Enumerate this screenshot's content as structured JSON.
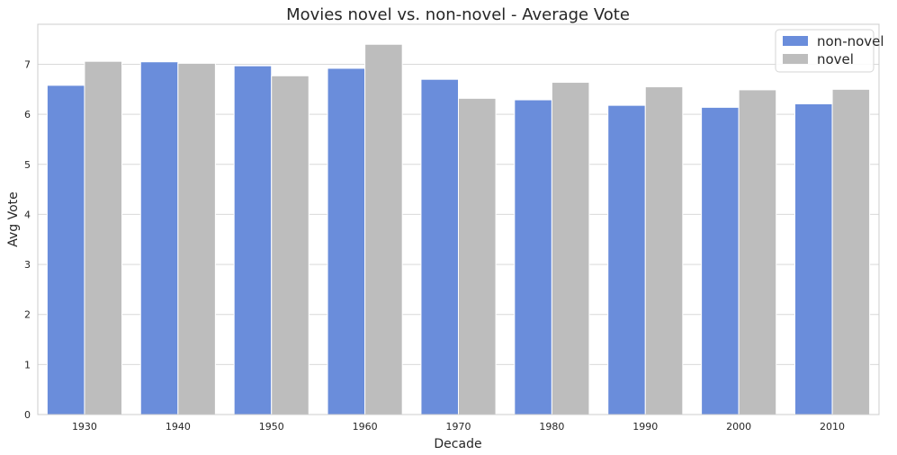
{
  "chart_data": {
    "type": "bar",
    "title": "Movies novel vs. non-novel - Average Vote",
    "xlabel": "Decade",
    "ylabel": "Avg Vote",
    "categories": [
      "1930",
      "1940",
      "1950",
      "1960",
      "1970",
      "1980",
      "1990",
      "2000",
      "2010"
    ],
    "series": [
      {
        "name": "non-novel",
        "color": "#6a8ddb",
        "values": [
          6.58,
          7.05,
          6.97,
          6.92,
          6.7,
          6.29,
          6.18,
          6.14,
          6.21
        ]
      },
      {
        "name": "novel",
        "color": "#bdbdbd",
        "values": [
          7.06,
          7.02,
          6.77,
          7.4,
          6.32,
          6.64,
          6.55,
          6.49,
          6.5
        ]
      }
    ],
    "ylim": [
      0,
      7.8
    ],
    "yticks": [
      0,
      1,
      2,
      3,
      4,
      5,
      6,
      7
    ],
    "grid": true,
    "legend_position": "top-right"
  }
}
